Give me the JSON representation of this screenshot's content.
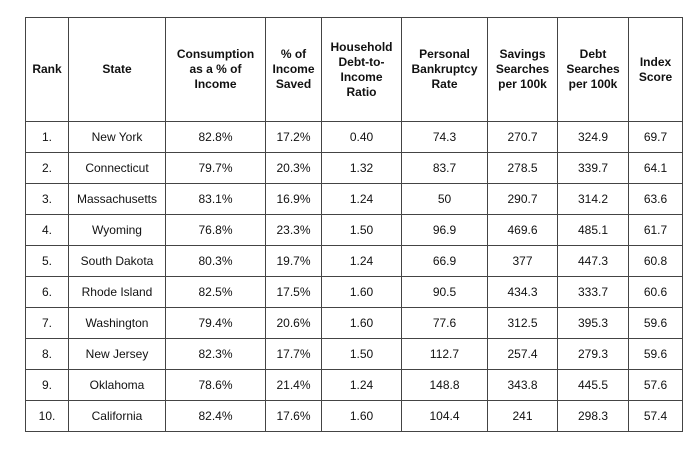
{
  "table": {
    "header": [
      "Rank",
      "State",
      "Consumption as a % of Income",
      "% of Income Saved",
      "Household Debt-to-Income Ratio",
      "Personal Bankruptcy Rate",
      "Savings Searches per 100k",
      "Debt Searches per 100k",
      "Index Score"
    ],
    "rows": [
      [
        "1.",
        "New York",
        "82.8%",
        "17.2%",
        "0.40",
        "74.3",
        "270.7",
        "324.9",
        "69.7"
      ],
      [
        "2.",
        "Connecticut",
        "79.7%",
        "20.3%",
        "1.32",
        "83.7",
        "278.5",
        "339.7",
        "64.1"
      ],
      [
        "3.",
        "Massachusetts",
        "83.1%",
        "16.9%",
        "1.24",
        "50",
        "290.7",
        "314.2",
        "63.6"
      ],
      [
        "4.",
        "Wyoming",
        "76.8%",
        "23.3%",
        "1.50",
        "96.9",
        "469.6",
        "485.1",
        "61.7"
      ],
      [
        "5.",
        "South Dakota",
        "80.3%",
        "19.7%",
        "1.24",
        "66.9",
        "377",
        "447.3",
        "60.8"
      ],
      [
        "6.",
        "Rhode Island",
        "82.5%",
        "17.5%",
        "1.60",
        "90.5",
        "434.3",
        "333.7",
        "60.6"
      ],
      [
        "7.",
        "Washington",
        "79.4%",
        "20.6%",
        "1.60",
        "77.6",
        "312.5",
        "395.3",
        "59.6"
      ],
      [
        "8.",
        "New Jersey",
        "82.3%",
        "17.7%",
        "1.50",
        "112.7",
        "257.4",
        "279.3",
        "59.6"
      ],
      [
        "9.",
        "Oklahoma",
        "78.6%",
        "21.4%",
        "1.24",
        "148.8",
        "343.8",
        "445.5",
        "57.6"
      ],
      [
        "10.",
        "California",
        "82.4%",
        "17.6%",
        "1.60",
        "104.4",
        "241",
        "298.3",
        "57.4"
      ]
    ]
  }
}
